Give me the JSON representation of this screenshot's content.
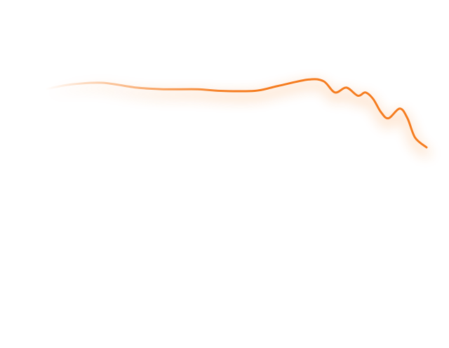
{
  "chart_data": {
    "type": "line",
    "title": "",
    "xlabel": "",
    "ylabel": "",
    "grid": false,
    "legend": "none",
    "axes_visible": false,
    "xlim": [
      0,
      100
    ],
    "ylim": [
      0,
      100
    ],
    "series": [
      {
        "color": "#f57c1f",
        "fade_from_start": true,
        "x": [
          0,
          7,
          15,
          24,
          31,
          40,
          46,
          55,
          61,
          69,
          73,
          76,
          79,
          82,
          84,
          86,
          88,
          90,
          93,
          95,
          97,
          100
        ],
        "y": [
          76,
          79,
          80,
          77,
          76,
          76,
          75,
          75,
          78,
          82,
          81,
          74,
          77,
          72,
          74,
          70,
          62,
          58,
          64,
          58,
          46,
          40
        ]
      }
    ]
  }
}
